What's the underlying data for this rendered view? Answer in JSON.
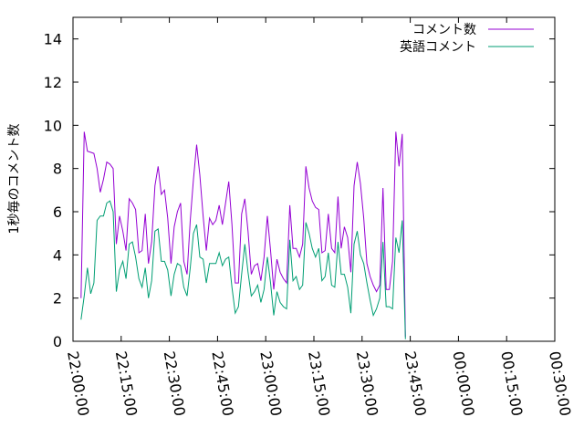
{
  "chart_data": {
    "type": "line",
    "title": "",
    "xlabel": "",
    "ylabel": "1秒毎のコメント数",
    "ylim": [
      0,
      15
    ],
    "yticks": [
      0,
      2,
      4,
      6,
      8,
      10,
      12,
      14
    ],
    "xlim_minutes": [
      0,
      150
    ],
    "xticks": [
      {
        "label": "22:00:00",
        "minute": 0
      },
      {
        "label": "22:15:00",
        "minute": 15
      },
      {
        "label": "22:30:00",
        "minute": 30
      },
      {
        "label": "22:45:00",
        "minute": 45
      },
      {
        "label": "23:00:00",
        "minute": 60
      },
      {
        "label": "23:15:00",
        "minute": 75
      },
      {
        "label": "23:30:00",
        "minute": 90
      },
      {
        "label": "23:45:00",
        "minute": 105
      },
      {
        "label": "00:00:00",
        "minute": 120
      },
      {
        "label": "00:15:00",
        "minute": 135
      },
      {
        "label": "00:30:00",
        "minute": 150
      }
    ],
    "legend_position": "top-right",
    "grid": false,
    "series": [
      {
        "name": "コメント数",
        "color": "#9400d3",
        "points": [
          [
            2.5,
            2.0
          ],
          [
            3.5,
            9.7
          ],
          [
            4.5,
            8.8
          ],
          [
            5.5,
            8.75
          ],
          [
            6.5,
            8.7
          ],
          [
            7.5,
            8.0
          ],
          [
            8.5,
            6.9
          ],
          [
            9.5,
            7.5
          ],
          [
            10.5,
            8.3
          ],
          [
            11.5,
            8.2
          ],
          [
            12.5,
            8.0
          ],
          [
            13.5,
            4.5
          ],
          [
            14.5,
            5.8
          ],
          [
            15.5,
            5.1
          ],
          [
            16.5,
            4.2
          ],
          [
            17.5,
            6.6
          ],
          [
            18.5,
            6.4
          ],
          [
            19.5,
            6.1
          ],
          [
            20.5,
            4.1
          ],
          [
            21.5,
            4.2
          ],
          [
            22.5,
            5.9
          ],
          [
            23.5,
            3.6
          ],
          [
            24.5,
            4.6
          ],
          [
            25.5,
            7.2
          ],
          [
            26.5,
            8.1
          ],
          [
            27.5,
            6.8
          ],
          [
            28.5,
            7.0
          ],
          [
            29.5,
            5.7
          ],
          [
            30.5,
            3.6
          ],
          [
            31.5,
            5.3
          ],
          [
            32.5,
            6.0
          ],
          [
            33.5,
            6.4
          ],
          [
            34.5,
            3.7
          ],
          [
            35.5,
            3.1
          ],
          [
            36.5,
            5.6
          ],
          [
            37.5,
            7.5
          ],
          [
            38.5,
            9.1
          ],
          [
            39.5,
            7.7
          ],
          [
            40.5,
            5.8
          ],
          [
            41.5,
            4.2
          ],
          [
            42.5,
            5.7
          ],
          [
            43.5,
            5.4
          ],
          [
            44.5,
            5.6
          ],
          [
            45.5,
            6.3
          ],
          [
            46.5,
            5.4
          ],
          [
            47.5,
            6.4
          ],
          [
            48.5,
            7.4
          ],
          [
            49.5,
            5.4
          ],
          [
            50.5,
            2.7
          ],
          [
            51.5,
            2.7
          ],
          [
            52.5,
            5.9
          ],
          [
            53.5,
            6.6
          ],
          [
            54.5,
            5.1
          ],
          [
            55.5,
            3.1
          ],
          [
            56.5,
            3.5
          ],
          [
            57.5,
            3.6
          ],
          [
            58.5,
            2.8
          ],
          [
            59.5,
            3.9
          ],
          [
            60.5,
            5.8
          ],
          [
            61.5,
            4.2
          ],
          [
            62.5,
            2.4
          ],
          [
            63.5,
            3.8
          ],
          [
            64.5,
            3.2
          ],
          [
            65.5,
            2.9
          ],
          [
            66.5,
            2.7
          ],
          [
            67.5,
            6.3
          ],
          [
            68.5,
            4.3
          ],
          [
            69.5,
            4.3
          ],
          [
            70.5,
            3.9
          ],
          [
            71.5,
            4.5
          ],
          [
            72.5,
            8.1
          ],
          [
            73.5,
            7.1
          ],
          [
            74.5,
            6.5
          ],
          [
            75.5,
            6.2
          ],
          [
            76.5,
            6.1
          ],
          [
            77.5,
            4.1
          ],
          [
            78.5,
            4.2
          ],
          [
            79.5,
            5.9
          ],
          [
            80.5,
            4.3
          ],
          [
            81.5,
            4.1
          ],
          [
            82.5,
            6.7
          ],
          [
            83.5,
            4.3
          ],
          [
            84.5,
            5.3
          ],
          [
            85.5,
            4.8
          ],
          [
            86.5,
            3.2
          ],
          [
            87.5,
            7.2
          ],
          [
            88.5,
            8.3
          ],
          [
            89.5,
            7.3
          ],
          [
            90.5,
            5.7
          ],
          [
            91.5,
            3.6
          ],
          [
            92.5,
            3.0
          ],
          [
            93.5,
            2.6
          ],
          [
            94.5,
            2.3
          ],
          [
            95.5,
            2.6
          ],
          [
            96.5,
            7.1
          ],
          [
            97.5,
            2.4
          ],
          [
            98.5,
            2.4
          ],
          [
            99.5,
            3.7
          ],
          [
            100.5,
            9.7
          ],
          [
            101.5,
            8.1
          ],
          [
            102.5,
            9.6
          ],
          [
            103.5,
            0.2
          ]
        ]
      },
      {
        "name": "英語コメント",
        "color": "#009e73",
        "points": [
          [
            2.5,
            1.0
          ],
          [
            3.5,
            2.1
          ],
          [
            4.5,
            3.4
          ],
          [
            5.5,
            2.2
          ],
          [
            6.5,
            2.7
          ],
          [
            7.5,
            5.6
          ],
          [
            8.5,
            5.8
          ],
          [
            9.5,
            5.8
          ],
          [
            10.5,
            6.4
          ],
          [
            11.5,
            6.5
          ],
          [
            12.5,
            6.0
          ],
          [
            13.5,
            2.3
          ],
          [
            14.5,
            3.3
          ],
          [
            15.5,
            3.7
          ],
          [
            16.5,
            2.9
          ],
          [
            17.5,
            4.5
          ],
          [
            18.5,
            4.6
          ],
          [
            19.5,
            3.9
          ],
          [
            20.5,
            2.9
          ],
          [
            21.5,
            2.5
          ],
          [
            22.5,
            3.4
          ],
          [
            23.5,
            2.0
          ],
          [
            24.5,
            2.8
          ],
          [
            25.5,
            5.1
          ],
          [
            26.5,
            5.2
          ],
          [
            27.5,
            3.7
          ],
          [
            28.5,
            3.7
          ],
          [
            29.5,
            3.3
          ],
          [
            30.5,
            2.1
          ],
          [
            31.5,
            3.1
          ],
          [
            32.5,
            3.6
          ],
          [
            33.5,
            3.5
          ],
          [
            34.5,
            2.5
          ],
          [
            35.5,
            2.1
          ],
          [
            36.5,
            3.4
          ],
          [
            37.5,
            5.0
          ],
          [
            38.5,
            5.4
          ],
          [
            39.5,
            3.9
          ],
          [
            40.5,
            3.8
          ],
          [
            41.5,
            2.7
          ],
          [
            42.5,
            3.6
          ],
          [
            43.5,
            3.6
          ],
          [
            44.5,
            3.6
          ],
          [
            45.5,
            4.1
          ],
          [
            46.5,
            3.5
          ],
          [
            47.5,
            3.8
          ],
          [
            48.5,
            3.9
          ],
          [
            49.5,
            2.5
          ],
          [
            50.5,
            1.3
          ],
          [
            51.5,
            1.6
          ],
          [
            52.5,
            3.1
          ],
          [
            53.5,
            4.5
          ],
          [
            54.5,
            3.2
          ],
          [
            55.5,
            2.1
          ],
          [
            56.5,
            2.3
          ],
          [
            57.5,
            2.6
          ],
          [
            58.5,
            1.8
          ],
          [
            59.5,
            2.4
          ],
          [
            60.5,
            3.9
          ],
          [
            61.5,
            2.7
          ],
          [
            62.5,
            1.2
          ],
          [
            63.5,
            2.3
          ],
          [
            64.5,
            1.8
          ],
          [
            65.5,
            1.6
          ],
          [
            66.5,
            1.5
          ],
          [
            67.5,
            4.7
          ],
          [
            68.5,
            2.8
          ],
          [
            69.5,
            3.0
          ],
          [
            70.5,
            2.4
          ],
          [
            71.5,
            2.6
          ],
          [
            72.5,
            5.5
          ],
          [
            73.5,
            5.0
          ],
          [
            74.5,
            4.3
          ],
          [
            75.5,
            3.9
          ],
          [
            76.5,
            4.3
          ],
          [
            77.5,
            2.8
          ],
          [
            78.5,
            3.0
          ],
          [
            79.5,
            4.1
          ],
          [
            80.5,
            2.6
          ],
          [
            81.5,
            2.5
          ],
          [
            82.5,
            4.6
          ],
          [
            83.5,
            3.1
          ],
          [
            84.5,
            3.1
          ],
          [
            85.5,
            2.5
          ],
          [
            86.5,
            1.3
          ],
          [
            87.5,
            4.5
          ],
          [
            88.5,
            5.1
          ],
          [
            89.5,
            4.0
          ],
          [
            90.5,
            3.6
          ],
          [
            91.5,
            2.7
          ],
          [
            92.5,
            1.9
          ],
          [
            93.5,
            1.2
          ],
          [
            94.5,
            1.5
          ],
          [
            95.5,
            2.0
          ],
          [
            96.5,
            4.6
          ],
          [
            97.5,
            1.6
          ],
          [
            98.5,
            1.6
          ],
          [
            99.5,
            1.5
          ],
          [
            100.5,
            4.8
          ],
          [
            101.5,
            4.1
          ],
          [
            102.5,
            5.6
          ],
          [
            103.5,
            0.1
          ]
        ]
      }
    ]
  }
}
